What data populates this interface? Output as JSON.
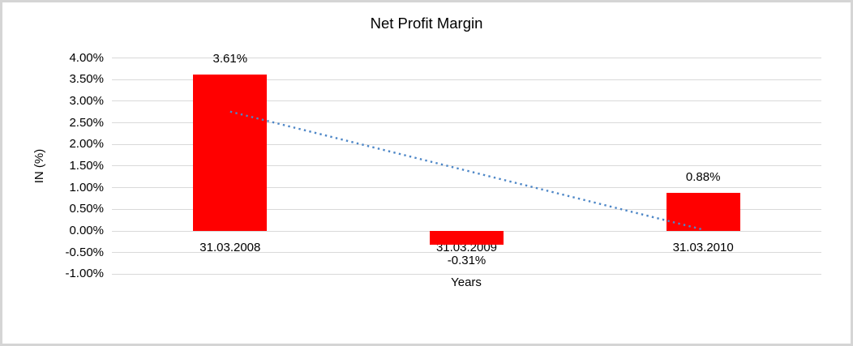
{
  "window": {
    "background": "#ffffff",
    "border_color": "#d5d5d5"
  },
  "chart_data": {
    "type": "bar",
    "title": "Net Profit Margin",
    "xlabel": "Years",
    "ylabel": "IN (%)",
    "categories": [
      "31.03.2008",
      "31.03.2009",
      "31.03.2010"
    ],
    "values": [
      3.61,
      -0.31,
      0.88
    ],
    "data_labels": [
      "3.61%",
      "-0.31%",
      "0.88%"
    ],
    "bar_color": "#ff0000",
    "ylim": [
      -1.0,
      4.0
    ],
    "yticks": [
      {
        "value": 4.0,
        "label": "4.00%"
      },
      {
        "value": 3.5,
        "label": "3.50%"
      },
      {
        "value": 3.0,
        "label": "3.00%"
      },
      {
        "value": 2.5,
        "label": "2.50%"
      },
      {
        "value": 2.0,
        "label": "2.00%"
      },
      {
        "value": 1.5,
        "label": "1.50%"
      },
      {
        "value": 1.0,
        "label": "1.00%"
      },
      {
        "value": 0.5,
        "label": "0.50%"
      },
      {
        "value": 0.0,
        "label": "0.00%"
      },
      {
        "value": -0.5,
        "label": "-0.50%"
      },
      {
        "value": -1.0,
        "label": "-1.00%"
      }
    ],
    "grid": true,
    "gridline_color": "#d9d9d9",
    "legend": "none",
    "trendline": {
      "type": "linear",
      "style": "dotted",
      "color": "#4e87c7",
      "fitted_values": [
        2.76,
        0.03
      ]
    }
  }
}
